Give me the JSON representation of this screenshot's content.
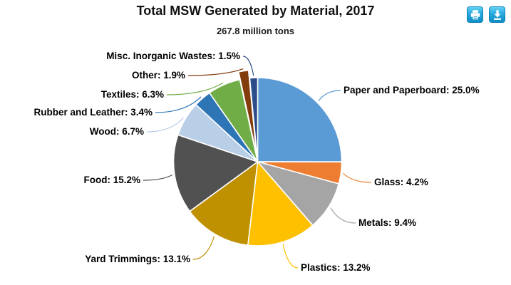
{
  "header": {
    "title": "Total MSW Generated by Material, 2017",
    "subtitle": "267.8 million tons"
  },
  "toolbar": {
    "icons": [
      "print-icon",
      "download-icon"
    ]
  },
  "chart_data": {
    "type": "pie",
    "title": "Total MSW Generated by Material, 2017",
    "subtitle": "267.8 million tons",
    "unit": "%",
    "label_format": "{name}: {value}%",
    "legend": "off",
    "slices": [
      {
        "label": "Paper and Paperboard",
        "value": 25.0,
        "color": "#5B9BD5"
      },
      {
        "label": "Glass",
        "value": 4.2,
        "color": "#ED7D31"
      },
      {
        "label": "Metals",
        "value": 9.4,
        "color": "#A5A5A5"
      },
      {
        "label": "Plastics",
        "value": 13.2,
        "color": "#FFC000"
      },
      {
        "label": "Yard Trimmings",
        "value": 13.1,
        "color": "#BF9000"
      },
      {
        "label": "Food",
        "value": 15.2,
        "color": "#515151"
      },
      {
        "label": "Wood",
        "value": 6.7,
        "color": "#B9CEE7"
      },
      {
        "label": "Rubber and Leather",
        "value": 3.4,
        "color": "#2E75B6"
      },
      {
        "label": "Textiles",
        "value": 6.3,
        "color": "#70AD47"
      },
      {
        "label": "Other",
        "value": 1.9,
        "color": "#833C0B",
        "exploded": true
      },
      {
        "label": "Misc. Inorganic Wastes",
        "value": 1.5,
        "color": "#2B4D89"
      }
    ]
  }
}
